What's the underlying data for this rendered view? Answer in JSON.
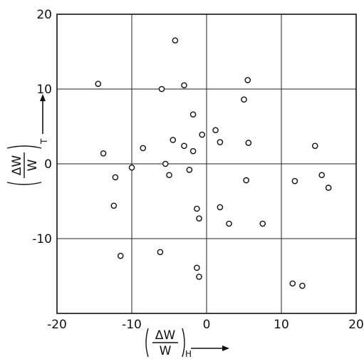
{
  "chart_data": {
    "type": "scatter",
    "title": "",
    "xlabel": {
      "numerator": "ΔW",
      "denominator": "W",
      "subscript": "H"
    },
    "ylabel": {
      "numerator": "ΔW",
      "denominator": "W",
      "subscript": "T"
    },
    "xlim": [
      -20,
      20
    ],
    "ylim": [
      -20,
      20
    ],
    "xticks": [
      "-20",
      "-10",
      "0",
      "10",
      "20"
    ],
    "yticks": [
      "20",
      "10",
      "0",
      "-10"
    ],
    "grid": true,
    "series": [
      {
        "x": [
          -4.2,
          -14.5,
          -6,
          -3,
          5.5,
          -1.8,
          5,
          -13.8,
          -8.5,
          -4.5,
          -3,
          -1.8,
          -0.6,
          1.2,
          1.8,
          5.6,
          14.5,
          -5.5,
          -10,
          -2.3,
          -5,
          -12.2,
          15.4,
          5.3,
          11.8,
          16.3,
          -12.4,
          -1.3,
          -1,
          1.8,
          3,
          7.5,
          -11.5,
          -6.2,
          -1.3,
          -1,
          11.5,
          12.8
        ],
        "y": [
          16.5,
          10.7,
          10,
          10.5,
          11.2,
          6.6,
          8.6,
          1.4,
          2.1,
          3.2,
          2.4,
          1.7,
          3.9,
          4.5,
          2.9,
          2.8,
          2.4,
          0,
          -0.5,
          -0.8,
          -1.5,
          -1.8,
          -1.5,
          -2.2,
          -2.3,
          -3.2,
          -5.6,
          -6,
          -7.3,
          -5.8,
          -8,
          -8,
          -12.3,
          -11.8,
          -13.9,
          -15.1,
          -16,
          -16.3
        ]
      }
    ]
  }
}
